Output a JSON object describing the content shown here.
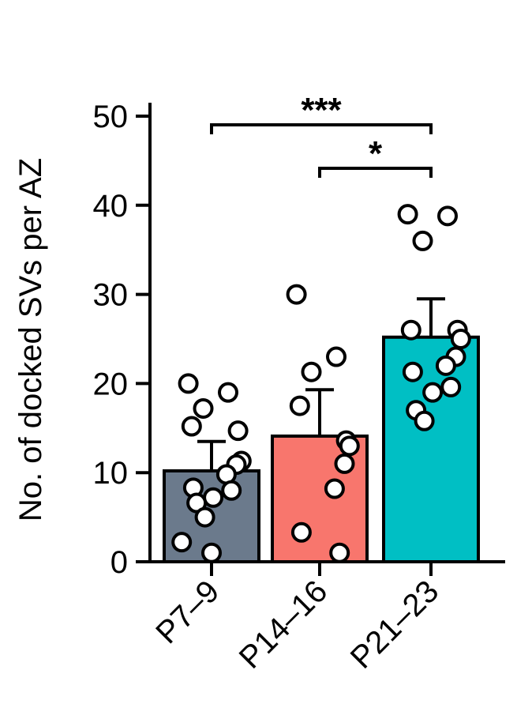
{
  "chart_data": {
    "type": "bar",
    "title": "",
    "xlabel": "",
    "ylabel": "No. of docked SVs per AZ",
    "ylim": [
      0,
      50
    ],
    "yticks": [
      0,
      10,
      20,
      30,
      40,
      50
    ],
    "categories": [
      "P7–9",
      "P14–16",
      "P21–23"
    ],
    "values": [
      10.2,
      14.1,
      25.2
    ],
    "error": [
      3.3,
      5.2,
      4.3
    ],
    "colors": [
      "#6b7a8c",
      "#f8766d",
      "#00bfc4"
    ],
    "points": [
      [
        20.0,
        19.0,
        17.2,
        15.2,
        14.7,
        11.3,
        10.9,
        9.8,
        8.3,
        8.0,
        7.2,
        6.6,
        5.0,
        2.2,
        1.0
      ],
      [
        30.0,
        23.0,
        21.3,
        17.5,
        13.6,
        13.0,
        11.0,
        8.2,
        3.3,
        1.0
      ],
      [
        39.0,
        38.8,
        36.0,
        26.0,
        26.0,
        25.0,
        23.0,
        22.0,
        21.3,
        19.6,
        19.0,
        17.0,
        15.8
      ]
    ],
    "significance": [
      {
        "from": 0,
        "to": 2,
        "label": "***"
      },
      {
        "from": 1,
        "to": 2,
        "label": "*"
      }
    ]
  }
}
